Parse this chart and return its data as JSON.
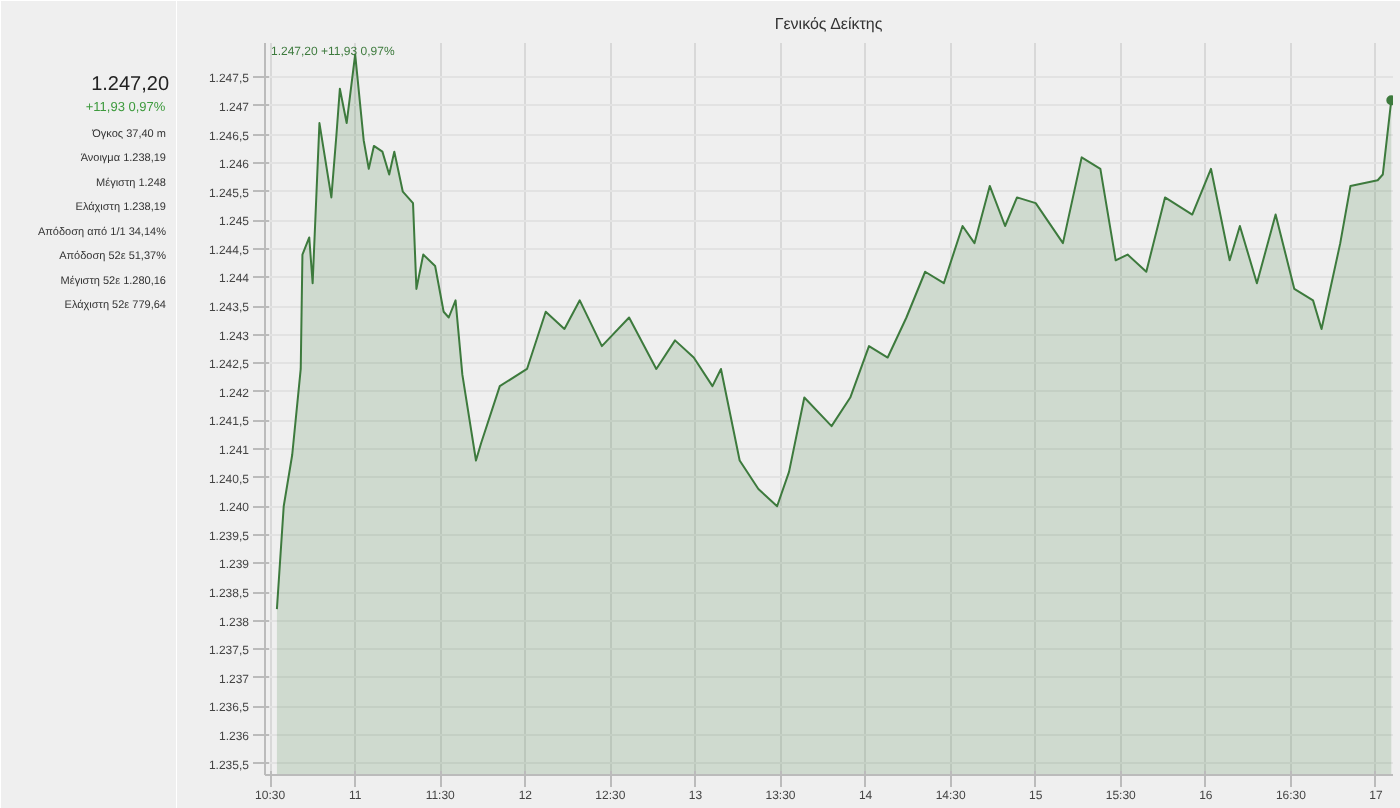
{
  "chart_data": {
    "type": "area",
    "title": "Γενικός Δείκτης",
    "annotations": [
      "1.247,20 +11,93 0,97%",
      "1.247,20",
      "+11,93  0,97%",
      "Όγκος  37,40 m",
      "Άνοιγμα  1.238,19",
      "Μέγιστη  1.248",
      "Ελάχιστη  1.238,19",
      "Απόδοση από 1/1  34,14%",
      "Απόδοση 52ε  51,37%",
      "Μέγιστη 52ε  1.280,16",
      "Ελάχιστη 52ε  779,64"
    ],
    "x": [
      10.54,
      10.58,
      10.63,
      10.68,
      10.69,
      10.73,
      10.75,
      10.79,
      10.86,
      10.89,
      10.91,
      10.95,
      11.0,
      11.05,
      11.08,
      11.11,
      11.16,
      11.2,
      11.23,
      11.28,
      11.34,
      11.36,
      11.4,
      11.47,
      11.52,
      11.55,
      11.59,
      11.63,
      11.71,
      11.74,
      11.85,
      12.01,
      12.12,
      12.23,
      12.32,
      12.45,
      12.61,
      12.77,
      12.88,
      12.99,
      13.1,
      13.15,
      13.26,
      13.37,
      13.48,
      13.55,
      13.64,
      13.8,
      13.91,
      14.02,
      14.13,
      14.24,
      14.35,
      14.46,
      14.57,
      14.64,
      14.73,
      14.82,
      14.89,
      15.0,
      15.16,
      15.27,
      15.38,
      15.47,
      15.54,
      15.65,
      15.76,
      15.92,
      16.03,
      16.14,
      16.2,
      16.3,
      16.41,
      16.52,
      16.63,
      16.68,
      16.79,
      16.85,
      17.01,
      17.04,
      17.09
    ],
    "series": [
      {
        "color": "#3d7a3d",
        "values": [
          1238.2,
          1240.0,
          1240.9,
          1242.4,
          1244.4,
          1244.7,
          1243.9,
          1246.7,
          1245.4,
          1246.5,
          1247.3,
          1246.7,
          1247.9,
          1246.4,
          1245.9,
          1246.3,
          1246.2,
          1245.8,
          1246.2,
          1245.5,
          1245.3,
          1243.8,
          1244.4,
          1244.2,
          1243.4,
          1243.3,
          1243.6,
          1242.3,
          1240.8,
          1241.1,
          1242.1,
          1242.4,
          1243.4,
          1243.1,
          1243.6,
          1242.8,
          1243.3,
          1242.4,
          1242.9,
          1242.6,
          1242.1,
          1242.4,
          1240.8,
          1240.3,
          1240.0,
          1240.6,
          1241.9,
          1241.4,
          1241.9,
          1242.8,
          1242.6,
          1243.3,
          1244.1,
          1243.9,
          1244.9,
          1244.6,
          1245.6,
          1244.9,
          1245.4,
          1245.3,
          1244.6,
          1246.1,
          1245.9,
          1244.3,
          1244.4,
          1244.1,
          1245.4,
          1245.1,
          1245.9,
          1244.3,
          1244.9,
          1243.9,
          1245.1,
          1243.8,
          1243.6,
          1243.1,
          1244.6,
          1245.6,
          1245.7,
          1245.8,
          1247.1
        ]
      }
    ],
    "xlim": [
      10.47,
      17.1
    ],
    "ylim": [
      1235.3,
      1248.1
    ],
    "xticks": [
      {
        "value": 10.5,
        "label": "10:30"
      },
      11,
      {
        "value": 11.5,
        "label": "11:30"
      },
      12,
      {
        "value": 12.5,
        "label": "12:30"
      },
      13,
      {
        "value": 13.5,
        "label": "13:30"
      },
      14,
      {
        "value": 14.5,
        "label": "14:30"
      },
      15,
      {
        "value": 15.5,
        "label": "15:30"
      },
      16,
      {
        "value": 16.5,
        "label": "16:30"
      },
      17
    ],
    "yticks": [
      {
        "value": 1235.5,
        "label": "1.235,5"
      },
      {
        "value": 1236,
        "label": "1.236"
      },
      {
        "value": 1236.5,
        "label": "1.236,5"
      },
      {
        "value": 1237,
        "label": "1.237"
      },
      {
        "value": 1237.5,
        "label": "1.237,5"
      },
      {
        "value": 1238,
        "label": "1.238"
      },
      {
        "value": 1238.5,
        "label": "1.238,5"
      },
      {
        "value": 1239,
        "label": "1.239"
      },
      {
        "value": 1239.5,
        "label": "1.239,5"
      },
      {
        "value": 1240,
        "label": "1.240"
      },
      {
        "value": 1240.5,
        "label": "1.240,5"
      },
      {
        "value": 1241,
        "label": "1.241"
      },
      {
        "value": 1241.5,
        "label": "1.241,5"
      },
      {
        "value": 1242,
        "label": "1.242"
      },
      {
        "value": 1242.5,
        "label": "1.242,5"
      },
      {
        "value": 1243,
        "label": "1.243"
      },
      {
        "value": 1243.5,
        "label": "1.243,5"
      },
      {
        "value": 1244,
        "label": "1.244"
      },
      {
        "value": 1244.5,
        "label": "1.244,5"
      },
      {
        "value": 1245,
        "label": "1.245"
      },
      {
        "value": 1245.5,
        "label": "1.245,5"
      },
      {
        "value": 1246,
        "label": "1.246"
      },
      {
        "value": 1246.5,
        "label": "1.246,5"
      },
      {
        "value": 1247,
        "label": "1.247"
      },
      {
        "value": 1247.5,
        "label": "1.247,5"
      }
    ],
    "grid": true
  }
}
